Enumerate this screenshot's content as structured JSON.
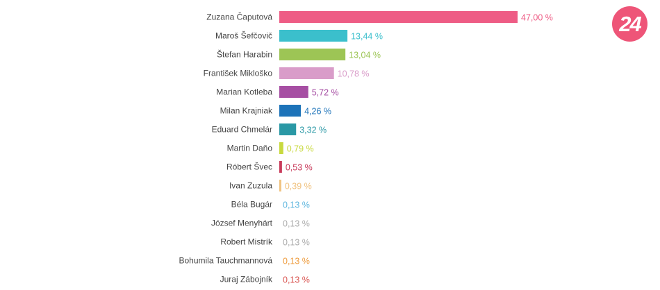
{
  "logo": {
    "text": "24",
    "color": "#ee5578"
  },
  "chart_data": {
    "type": "bar",
    "orientation": "horizontal",
    "xlim": [
      0,
      47
    ],
    "grid": false,
    "categories": [
      "Zuzana Čaputová",
      "Maroš Šefčovič",
      "Štefan Harabin",
      "František Mikloško",
      "Marian Kotleba",
      "Milan Krajniak",
      "Eduard Chmelár",
      "Martin Daňo",
      "Róbert Švec",
      "Ivan Zuzula",
      "Béla Bugár",
      "József Menyhárt",
      "Robert Mistrík",
      "Bohumila Tauchmannová",
      "Juraj Zábojník"
    ],
    "values": [
      47.0,
      13.44,
      13.04,
      10.78,
      5.72,
      4.26,
      3.32,
      0.79,
      0.53,
      0.39,
      0.13,
      0.13,
      0.13,
      0.13,
      0.13
    ],
    "value_labels": [
      "47,00 %",
      "13,44 %",
      "13,04 %",
      "10,78 %",
      "5,72 %",
      "4,26 %",
      "3,32 %",
      "0,79 %",
      "0,53 %",
      "0,39 %",
      "0,13 %",
      "0,13 %",
      "0,13 %",
      "0,13 %",
      "0,13 %"
    ],
    "colors": [
      "#ee5c85",
      "#3bbfcc",
      "#9dc555",
      "#d99cc9",
      "#a64ea3",
      "#1d73b9",
      "#2a98a5",
      "#c8d93e",
      "#c83a5a",
      "#f0c27f",
      "#5cb5de",
      "#bbbbbb",
      "#bbbbbb",
      "#ee9a3a",
      "#d9534f"
    ],
    "label_colors": [
      "#ee5c85",
      "#3bbfcc",
      "#9dc555",
      "#d99cc9",
      "#a64ea3",
      "#1d73b9",
      "#2a98a5",
      "#c8d93e",
      "#c83a5a",
      "#f0c27f",
      "#5cb5de",
      "#aaaaaa",
      "#aaaaaa",
      "#ee9a3a",
      "#d9534f"
    ]
  }
}
